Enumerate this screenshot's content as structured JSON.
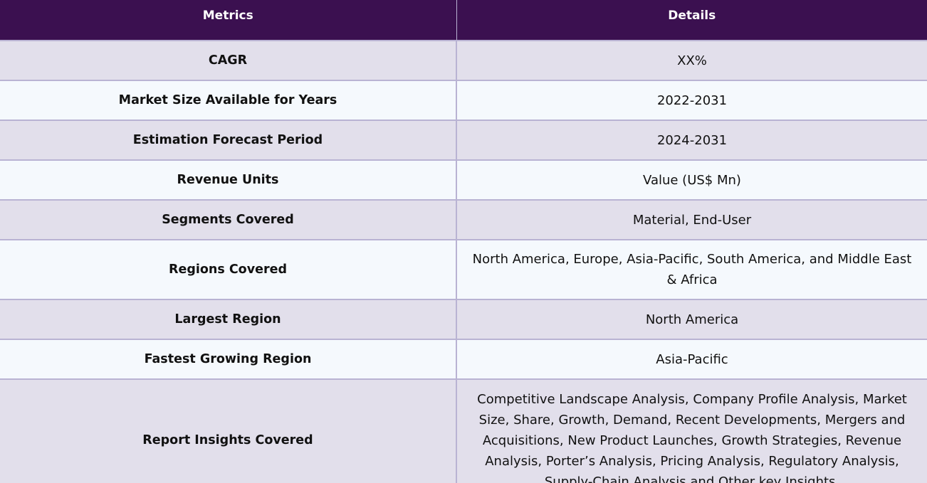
{
  "table": {
    "headers": {
      "metric": "Metrics",
      "detail": "Details"
    },
    "rows": [
      {
        "metric": "CAGR",
        "detail": "XX%"
      },
      {
        "metric": "Market Size Available for Years",
        "detail": "2022-2031"
      },
      {
        "metric": "Estimation Forecast Period",
        "detail": "2024-2031"
      },
      {
        "metric": "Revenue Units",
        "detail": "Value (US$ Mn)"
      },
      {
        "metric": "Segments Covered",
        "detail": "Material, End-User"
      },
      {
        "metric": "Regions Covered",
        "detail": "North America, Europe, Asia-Pacific, South America, and Middle East & Africa"
      },
      {
        "metric": "Largest Region",
        "detail": "North America"
      },
      {
        "metric": "Fastest Growing Region",
        "detail": "Asia-Pacific"
      },
      {
        "metric": "Report Insights Covered",
        "detail": "Competitive Landscape Analysis, Company Profile Analysis, Market Size, Share, Growth, Demand, Recent Developments, Mergers and Acquisitions, New Product Launches, Growth Strategies, Revenue Analysis, Porter’s Analysis, Pricing Analysis, Regulatory Analysis, Supply-Chain Analysis and Other key Insights."
      }
    ]
  }
}
